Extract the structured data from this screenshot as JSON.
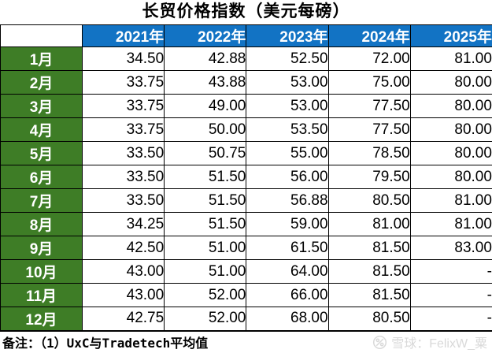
{
  "title": "长贸价格指数（美元每磅）",
  "table": {
    "corner_label": "",
    "year_headers": [
      "2021年",
      "2022年",
      "2023年",
      "2024年",
      "2025年"
    ],
    "rows": [
      {
        "month": "1月",
        "values": [
          "34.50",
          "42.88",
          "52.50",
          "72.00",
          "81.00"
        ]
      },
      {
        "month": "2月",
        "values": [
          "33.75",
          "43.88",
          "53.00",
          "75.00",
          "80.00"
        ]
      },
      {
        "month": "3月",
        "values": [
          "33.75",
          "49.00",
          "53.00",
          "77.50",
          "80.00"
        ]
      },
      {
        "month": "4月",
        "values": [
          "33.75",
          "50.00",
          "53.50",
          "77.50",
          "80.00"
        ]
      },
      {
        "month": "5月",
        "values": [
          "33.50",
          "50.75",
          "55.00",
          "78.50",
          "80.00"
        ]
      },
      {
        "month": "6月",
        "values": [
          "33.50",
          "51.50",
          "56.00",
          "79.50",
          "80.00"
        ]
      },
      {
        "month": "7月",
        "values": [
          "33.50",
          "51.50",
          "56.88",
          "80.50",
          "81.00"
        ]
      },
      {
        "month": "8月",
        "values": [
          "34.25",
          "51.50",
          "59.00",
          "81.00",
          "81.00"
        ]
      },
      {
        "month": "9月",
        "values": [
          "42.50",
          "51.00",
          "61.50",
          "81.50",
          "83.00"
        ]
      },
      {
        "month": "10月",
        "values": [
          "43.00",
          "51.00",
          "64.00",
          "81.50",
          "-"
        ]
      },
      {
        "month": "11月",
        "values": [
          "43.00",
          "52.00",
          "66.00",
          "81.50",
          "-"
        ]
      },
      {
        "month": "12月",
        "values": [
          "42.75",
          "52.00",
          "68.00",
          "80.50",
          "-"
        ]
      }
    ]
  },
  "footnote": "备注：（1）UxC与Tradetech平均值",
  "watermark": {
    "icon": "snowball-logo",
    "text": "雪球：FelixW_粟"
  },
  "colors": {
    "header_bg": "#1273c4",
    "month_bg": "#3e7d26",
    "grid_border": "#000000",
    "watermark": "#d9d9d9"
  },
  "chart_data": {
    "type": "table",
    "title": "长贸价格指数（美元每磅）",
    "categories": [
      "1月",
      "2月",
      "3月",
      "4月",
      "5月",
      "6月",
      "7月",
      "8月",
      "9月",
      "10月",
      "11月",
      "12月"
    ],
    "series": [
      {
        "name": "2021年",
        "values": [
          34.5,
          33.75,
          33.75,
          33.75,
          33.5,
          33.5,
          33.5,
          34.25,
          42.5,
          43.0,
          43.0,
          42.75
        ]
      },
      {
        "name": "2022年",
        "values": [
          42.88,
          43.88,
          49.0,
          50.0,
          50.75,
          51.5,
          51.5,
          51.5,
          51.0,
          51.0,
          52.0,
          52.0
        ]
      },
      {
        "name": "2023年",
        "values": [
          52.5,
          53.0,
          53.0,
          53.5,
          55.0,
          56.0,
          56.88,
          59.0,
          61.5,
          64.0,
          66.0,
          68.0
        ]
      },
      {
        "name": "2024年",
        "values": [
          72.0,
          75.0,
          77.5,
          77.5,
          78.5,
          79.5,
          80.5,
          81.0,
          81.5,
          81.5,
          81.5,
          80.5
        ]
      },
      {
        "name": "2025年",
        "values": [
          81.0,
          80.0,
          80.0,
          80.0,
          80.0,
          80.0,
          81.0,
          81.0,
          83.0,
          null,
          null,
          null
        ]
      }
    ],
    "note": "备注：（1）UxC与Tradetech平均值"
  }
}
